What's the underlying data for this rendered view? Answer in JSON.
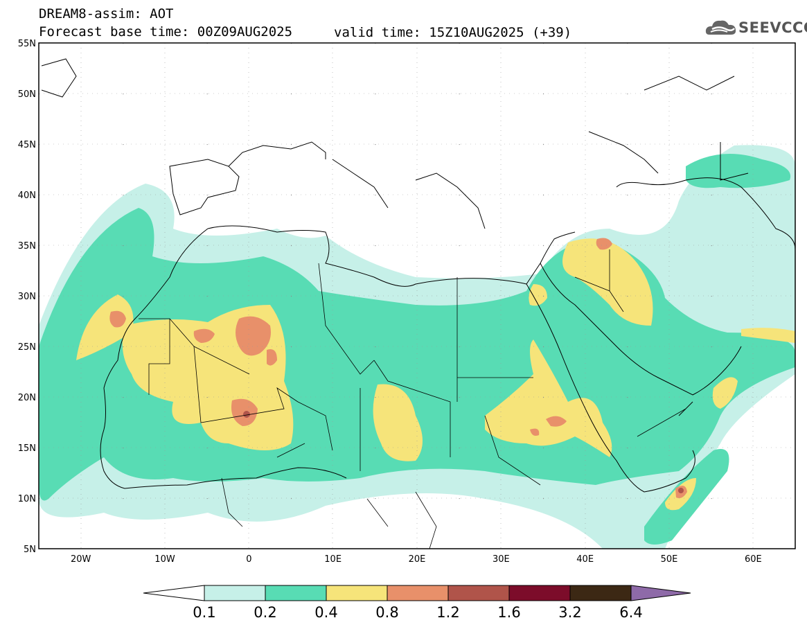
{
  "header": {
    "model": "DREAM8-assim: AOT",
    "base_time": "Forecast base time: 00Z09AUG2025",
    "valid_time": "valid time: 15Z10AUG2025 (+39)"
  },
  "logo": {
    "text": "SEEVCCC",
    "icon": "cloud-icon"
  },
  "map": {
    "lat_labels": [
      "55N",
      "50N",
      "45N",
      "40N",
      "35N",
      "30N",
      "25N",
      "20N",
      "15N",
      "10N",
      "5N"
    ],
    "lon_labels": [
      "20W",
      "10W",
      "0",
      "10E",
      "20E",
      "30E",
      "40E",
      "50E",
      "60E"
    ],
    "lon_range": [
      -25,
      65
    ],
    "lat_range": [
      5,
      55
    ]
  },
  "colorbar": {
    "labels": [
      "0.1",
      "0.2",
      "0.4",
      "0.8",
      "1.2",
      "1.6",
      "3.2",
      "6.4"
    ],
    "colors": {
      "under": "#ffffff",
      "c1": "#c6f0e8",
      "c2": "#58dcb4",
      "c3": "#f6e47a",
      "c4": "#e8906a",
      "c5": "#b0544a",
      "c6": "#7c0c2a",
      "c7": "#3c2814",
      "over": "#8e6aa8"
    }
  }
}
